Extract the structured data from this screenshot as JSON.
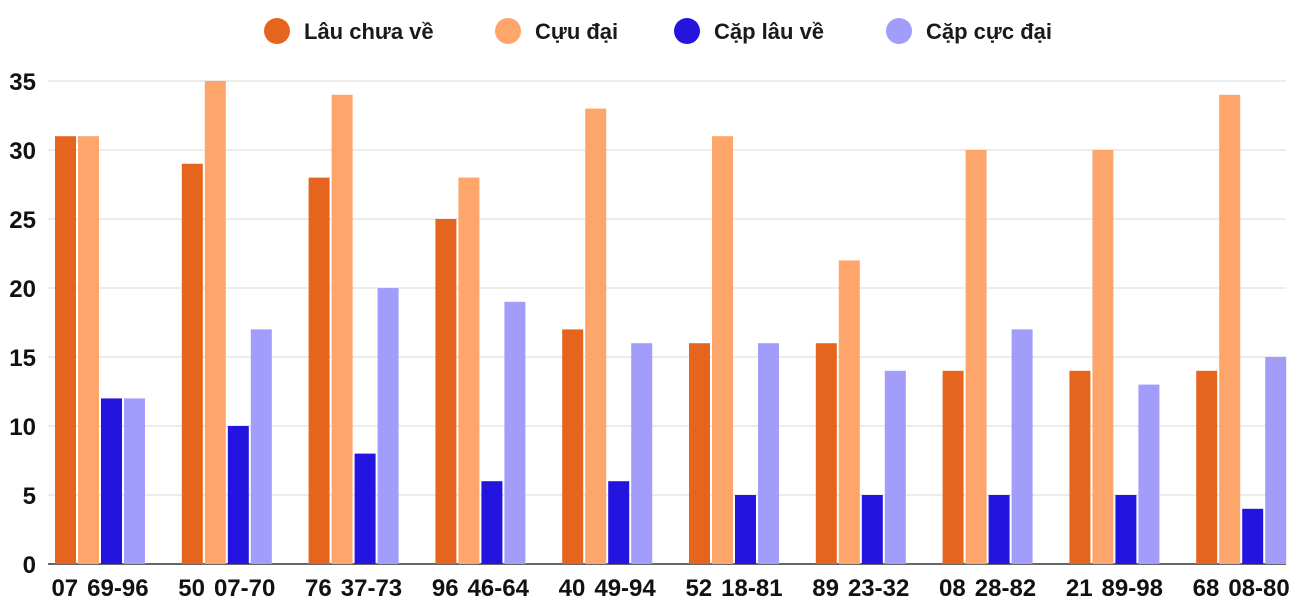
{
  "chart_data": {
    "type": "bar",
    "categories": [
      "07",
      "50",
      "76",
      "96",
      "40",
      "52",
      "89",
      "08",
      "21",
      "68"
    ],
    "pairs": [
      "69-96",
      "07-70",
      "37-73",
      "46-64",
      "49-94",
      "18-81",
      "23-32",
      "28-82",
      "89-98",
      "08-80"
    ],
    "series": [
      {
        "name": "Lâu chưa về",
        "color": "#e5651e",
        "values": [
          31,
          29,
          28,
          25,
          17,
          16,
          16,
          14,
          14,
          14
        ]
      },
      {
        "name": "Cựu đại",
        "color": "#fda56a",
        "values": [
          31,
          35,
          34,
          28,
          33,
          31,
          22,
          30,
          30,
          34
        ]
      },
      {
        "name": "Cặp lâu về",
        "color": "#2414e0",
        "values": [
          12,
          10,
          8,
          6,
          6,
          5,
          5,
          5,
          5,
          4
        ]
      },
      {
        "name": "Cặp cực đại",
        "color": "#a29cfb",
        "values": [
          12,
          17,
          20,
          19,
          16,
          16,
          14,
          17,
          13,
          15
        ]
      }
    ],
    "ylim": [
      0,
      35
    ],
    "yticks": [
      0,
      5,
      10,
      15,
      20,
      25,
      30,
      35
    ],
    "xlabel": "",
    "ylabel": "",
    "grid": true,
    "legend_position": "top-center"
  }
}
